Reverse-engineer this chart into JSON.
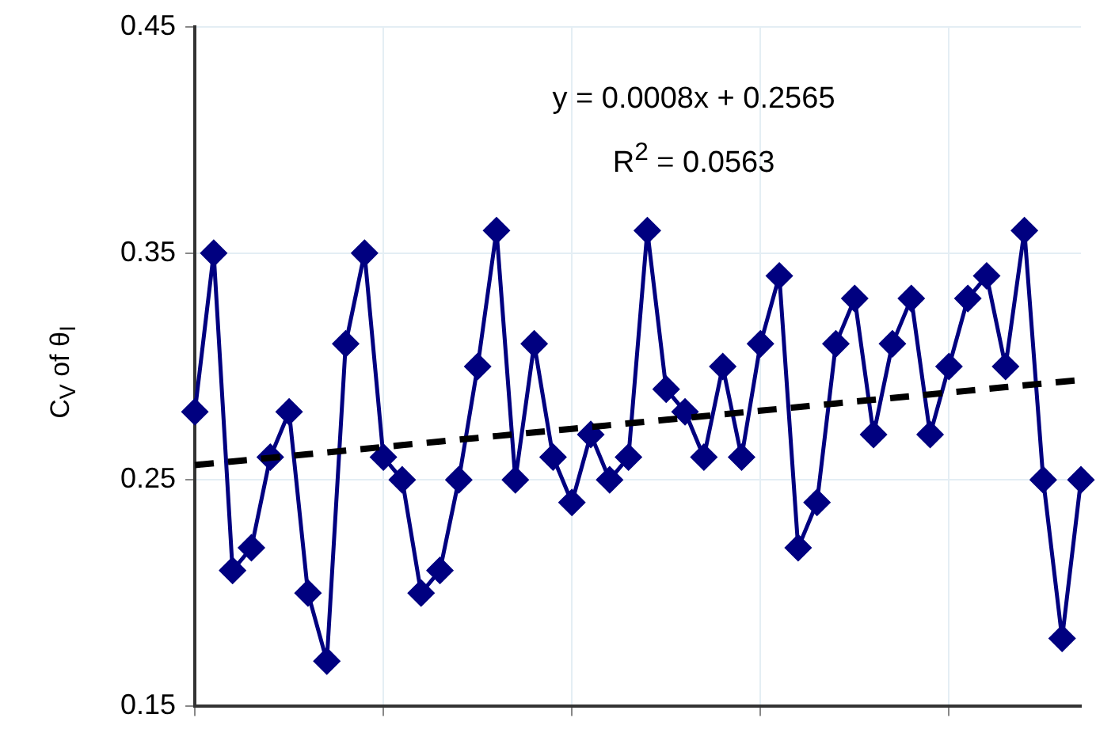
{
  "chart_data": {
    "type": "line",
    "ylabel": "C$_{V}$ of θ$_{I}$",
    "annotations": [
      "y = 0.0008x + 0.2565",
      "R$^{2}$ = 0.0563"
    ],
    "categories": [
      null,
      null,
      null,
      null,
      null,
      null,
      null,
      null,
      null,
      null,
      null,
      null,
      null,
      null,
      null,
      null,
      null,
      null,
      null,
      null,
      null,
      null,
      null,
      null,
      null,
      null,
      null,
      null,
      null,
      null,
      null,
      null,
      null,
      null,
      null,
      null,
      null,
      null,
      null,
      null,
      null,
      null,
      null,
      null,
      null,
      null,
      null,
      null
    ],
    "series": [
      {
        "color": "#000080",
        "marker": "diamond",
        "line_style": "solid",
        "values": [
          0.28,
          0.35,
          0.21,
          0.22,
          0.26,
          0.28,
          0.2,
          0.17,
          0.31,
          0.35,
          0.26,
          0.25,
          0.2,
          0.21,
          0.25,
          0.3,
          0.36,
          0.25,
          0.31,
          0.26,
          0.24,
          0.27,
          0.25,
          0.26,
          0.36,
          0.29,
          0.28,
          0.26,
          0.3,
          0.26,
          0.31,
          0.34,
          0.22,
          0.24,
          0.31,
          0.33,
          0.27,
          0.31,
          0.33,
          0.27,
          0.3,
          0.33,
          0.34,
          0.3,
          0.36,
          0.25,
          0.18,
          0.25
        ]
      },
      {
        "color": "#000000",
        "marker": "none",
        "line_style": "dashed",
        "values": [
          0.2565,
          0.2573,
          0.2581,
          0.2589,
          0.2597,
          0.2605,
          0.2613,
          0.2621,
          0.2629,
          0.2637,
          0.2645,
          0.2653,
          0.2661,
          0.2669,
          0.2677,
          0.2685,
          0.2693,
          0.2701,
          0.2709,
          0.2717,
          0.2725,
          0.2733,
          0.2741,
          0.2749,
          0.2757,
          0.2765,
          0.2773,
          0.2781,
          0.2789,
          0.2797,
          0.2805,
          0.2813,
          0.2821,
          0.2829,
          0.2837,
          0.2845,
          0.2853,
          0.2861,
          0.2869,
          0.2877,
          0.2885,
          0.2893,
          0.2901,
          0.2909,
          0.2917,
          0.2925,
          0.2933,
          0.2941
        ]
      }
    ],
    "ylim": [
      0.15,
      0.45
    ],
    "yticks": [
      0.15,
      0.25,
      0.35,
      0.45
    ],
    "tick_labels": "y",
    "grid": true,
    "legend": false
  }
}
